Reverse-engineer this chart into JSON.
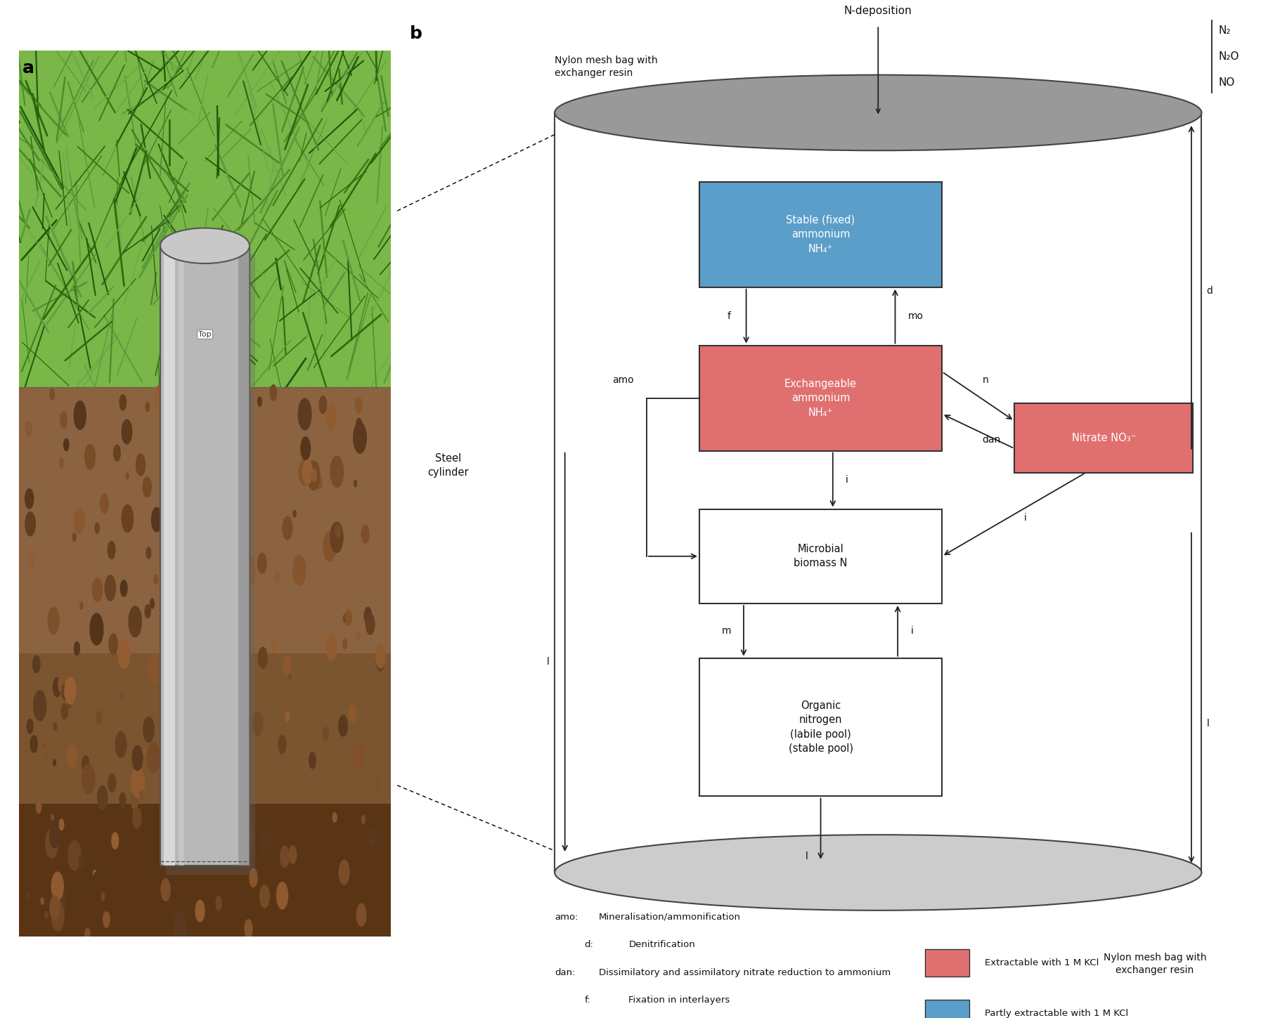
{
  "bg_color": "#ffffff",
  "cylinder_edge_color": "#444444",
  "top_ellipse_fill": "#999999",
  "bottom_ellipse_fill": "#cccccc",
  "stable_nh4_color": "#5b9ec9",
  "exchangeable_nh4_color": "#e07070",
  "nitrate_color": "#e07070",
  "microbial_color": "#ffffff",
  "organic_color": "#ffffff",
  "box_edge_color": "#333333",
  "arrow_color": "#222222",
  "text_color": "#111111",
  "legend_extractable_color": "#e07070",
  "legend_partly_color": "#5b9ec9",
  "n2_label": "N₂",
  "n2o_label": "N₂O",
  "no_label": "NO",
  "n_deposition_label": "N-deposition",
  "nylon_top_label": "Nylon mesh bag with\nexchanger resin",
  "nylon_bottom_label": "Nylon mesh bag with\nexchanger resin",
  "steel_cylinder_label": "Steel\ncylinder",
  "stable_nh4_label": "Stable (fixed)\nammonium\nNH₄⁺",
  "exchangeable_nh4_label": "Exchangeable\nammonium\nNH₄⁺",
  "nitrate_label": "Nitrate NO₃⁻",
  "microbial_label": "Microbial\nbiomass N",
  "organic_label": "Organic\nnitrogen\n(labile pool)\n(stable pool)"
}
